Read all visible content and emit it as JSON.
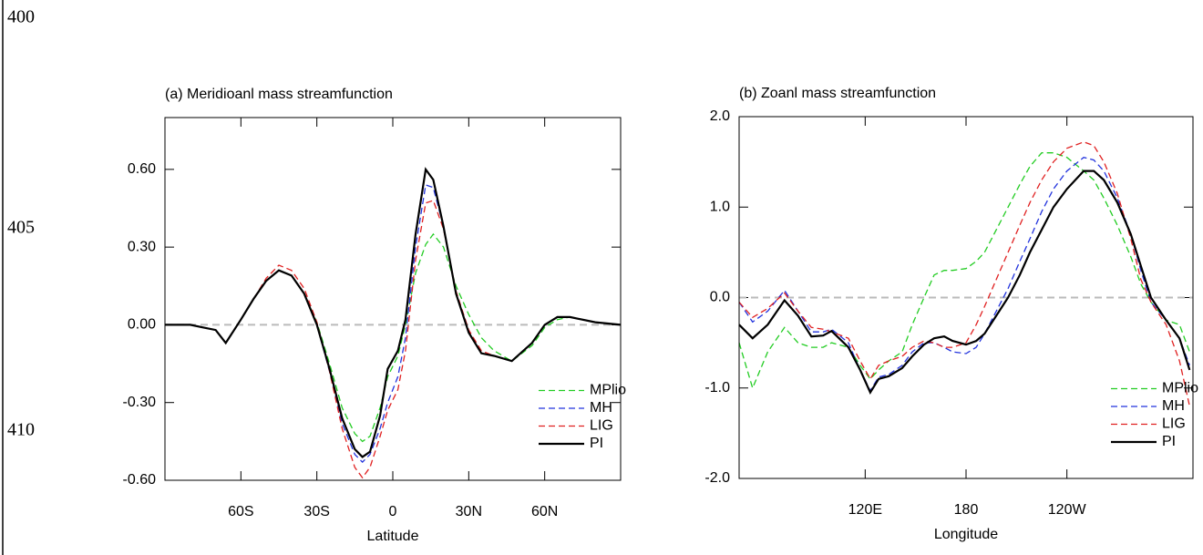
{
  "line_numbers": [
    "400",
    "405",
    "410"
  ],
  "chart_data": [
    {
      "type": "line",
      "title": "(a) Meridioanl mass streamfunction",
      "x_label": "Latitude",
      "x": [
        -90,
        -80,
        -75,
        -70,
        -66,
        -60,
        -55,
        -50,
        -45,
        -40,
        -35,
        -30,
        -25,
        -20,
        -15,
        -12,
        -9,
        -5,
        -2,
        2,
        5,
        9,
        13,
        16,
        20,
        25,
        30,
        35,
        40,
        47,
        55,
        60,
        65,
        70,
        80,
        90
      ],
      "xlim": [
        -90,
        90
      ],
      "xticks": [
        {
          "value": -60,
          "label": "60S"
        },
        {
          "value": -30,
          "label": "30S"
        },
        0,
        {
          "value": 30,
          "label": "30N"
        },
        {
          "value": 60,
          "label": "60N"
        }
      ],
      "ylim": [
        -0.6,
        0.8
      ],
      "yticks": [
        {
          "value": -0.6,
          "label": "-0.60"
        },
        {
          "value": -0.3,
          "label": "-0.30"
        },
        {
          "value": 0,
          "label": "0.00"
        },
        {
          "value": 0.3,
          "label": "0.30"
        },
        {
          "value": 0.6,
          "label": "0.60"
        }
      ],
      "hline": 0,
      "legend": "lower right",
      "series": [
        {
          "name": "MPlio",
          "color": "#22cc22",
          "dashed": true,
          "values": [
            0,
            0,
            -0.01,
            -0.02,
            -0.07,
            0.02,
            0.1,
            0.17,
            0.21,
            0.19,
            0.12,
            0.01,
            -0.15,
            -0.32,
            -0.42,
            -0.45,
            -0.43,
            -0.32,
            -0.2,
            -0.12,
            0.0,
            0.2,
            0.31,
            0.35,
            0.3,
            0.15,
            0.04,
            -0.05,
            -0.1,
            -0.14,
            -0.08,
            -0.01,
            0.02,
            0.03,
            0.01,
            0
          ]
        },
        {
          "name": "MH",
          "color": "#2233dd",
          "dashed": true,
          "values": [
            0,
            0,
            -0.01,
            -0.02,
            -0.07,
            0.02,
            0.1,
            0.17,
            0.21,
            0.19,
            0.12,
            0.0,
            -0.18,
            -0.38,
            -0.5,
            -0.53,
            -0.5,
            -0.4,
            -0.3,
            -0.2,
            -0.05,
            0.3,
            0.54,
            0.53,
            0.38,
            0.12,
            -0.03,
            -0.11,
            -0.12,
            -0.14,
            -0.07,
            0.0,
            0.03,
            0.03,
            0.01,
            0
          ]
        },
        {
          "name": "LIG",
          "color": "#e02020",
          "dashed": true,
          "values": [
            0,
            0,
            -0.01,
            -0.02,
            -0.07,
            0.02,
            0.1,
            0.18,
            0.23,
            0.21,
            0.14,
            0.01,
            -0.18,
            -0.4,
            -0.55,
            -0.59,
            -0.55,
            -0.43,
            -0.33,
            -0.25,
            -0.1,
            0.25,
            0.47,
            0.48,
            0.37,
            0.13,
            -0.02,
            -0.1,
            -0.12,
            -0.14,
            -0.07,
            0.0,
            0.03,
            0.03,
            0.01,
            0
          ]
        },
        {
          "name": "PI",
          "color": "#000000",
          "dashed": false,
          "values": [
            0,
            0,
            -0.01,
            -0.02,
            -0.07,
            0.02,
            0.1,
            0.17,
            0.21,
            0.19,
            0.12,
            0.0,
            -0.17,
            -0.36,
            -0.48,
            -0.51,
            -0.49,
            -0.35,
            -0.17,
            -0.1,
            0.02,
            0.35,
            0.6,
            0.56,
            0.38,
            0.12,
            -0.03,
            -0.11,
            -0.12,
            -0.14,
            -0.07,
            0.0,
            0.03,
            0.03,
            0.01,
            0
          ]
        }
      ]
    },
    {
      "type": "line",
      "title": "(b) Zoanl mass streamfunction",
      "x_label": "Longitude",
      "x": [
        45,
        53,
        62,
        72,
        80,
        88,
        95,
        100,
        110,
        117,
        123,
        128,
        134,
        142,
        148,
        155,
        161,
        167,
        172,
        180,
        186,
        191,
        198,
        205,
        212,
        218,
        225,
        232,
        240,
        250,
        256,
        262,
        270,
        278,
        284,
        290,
        299,
        307,
        313
      ],
      "xlim": [
        45,
        315
      ],
      "xticks": [
        {
          "value": 120,
          "label": "120E"
        },
        180,
        {
          "value": 240,
          "label": "120W"
        }
      ],
      "ylim": [
        -2,
        2
      ],
      "yticks": [
        {
          "value": -2,
          "label": "-2.0"
        },
        {
          "value": -1,
          "label": "-1.0"
        },
        {
          "value": 0,
          "label": "0.0"
        },
        {
          "value": 1,
          "label": "1.0"
        },
        {
          "value": 2,
          "label": "2.0"
        }
      ],
      "hline": 0,
      "legend": "lower right",
      "series": [
        {
          "name": "MPlio",
          "color": "#22cc22",
          "dashed": true,
          "values": [
            -0.5,
            -1.0,
            -0.6,
            -0.33,
            -0.5,
            -0.55,
            -0.55,
            -0.5,
            -0.55,
            -0.75,
            -0.9,
            -0.8,
            -0.7,
            -0.6,
            -0.3,
            0.0,
            0.25,
            0.3,
            0.3,
            0.32,
            0.4,
            0.5,
            0.75,
            1.0,
            1.25,
            1.45,
            1.6,
            1.6,
            1.55,
            1.4,
            1.3,
            1.1,
            0.8,
            0.45,
            0.15,
            -0.05,
            -0.25,
            -0.3,
            -0.6
          ]
        },
        {
          "name": "MH",
          "color": "#2233dd",
          "dashed": true,
          "values": [
            -0.05,
            -0.27,
            -0.15,
            0.08,
            -0.15,
            -0.38,
            -0.38,
            -0.35,
            -0.5,
            -0.8,
            -1.03,
            -0.88,
            -0.85,
            -0.75,
            -0.6,
            -0.5,
            -0.5,
            -0.55,
            -0.6,
            -0.62,
            -0.55,
            -0.4,
            -0.15,
            0.1,
            0.4,
            0.65,
            0.95,
            1.2,
            1.4,
            1.55,
            1.52,
            1.4,
            1.1,
            0.7,
            0.3,
            -0.05,
            -0.25,
            -0.45,
            -0.75
          ]
        },
        {
          "name": "LIG",
          "color": "#e02020",
          "dashed": true,
          "values": [
            -0.05,
            -0.22,
            -0.12,
            0.05,
            -0.15,
            -0.33,
            -0.35,
            -0.38,
            -0.45,
            -0.7,
            -0.9,
            -0.75,
            -0.7,
            -0.65,
            -0.55,
            -0.48,
            -0.5,
            -0.55,
            -0.55,
            -0.5,
            -0.3,
            -0.1,
            0.2,
            0.5,
            0.8,
            1.05,
            1.3,
            1.5,
            1.65,
            1.72,
            1.68,
            1.5,
            1.15,
            0.65,
            0.2,
            -0.05,
            -0.3,
            -0.7,
            -1.2
          ]
        },
        {
          "name": "PI",
          "color": "#000000",
          "dashed": false,
          "values": [
            -0.3,
            -0.45,
            -0.3,
            -0.03,
            -0.2,
            -0.43,
            -0.42,
            -0.37,
            -0.55,
            -0.8,
            -1.05,
            -0.9,
            -0.87,
            -0.78,
            -0.65,
            -0.52,
            -0.45,
            -0.43,
            -0.48,
            -0.52,
            -0.48,
            -0.4,
            -0.2,
            0.0,
            0.25,
            0.5,
            0.75,
            1.0,
            1.2,
            1.4,
            1.4,
            1.3,
            1.05,
            0.7,
            0.35,
            0.0,
            -0.25,
            -0.45,
            -0.8
          ]
        }
      ]
    }
  ]
}
